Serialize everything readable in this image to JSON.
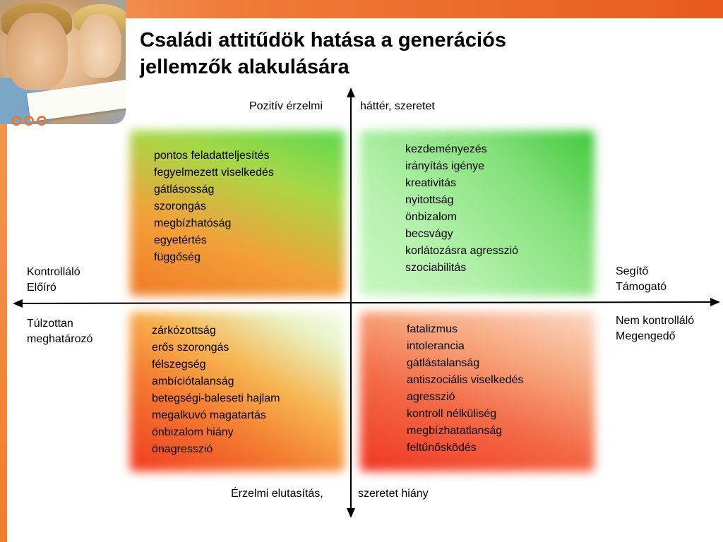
{
  "title": {
    "line1": "Családi attitűdök hatása a generációs",
    "line2": "jellemzők alakulására"
  },
  "axes": {
    "top_left": "Pozitív érzelmi",
    "top_right": "háttér, szeretet",
    "bottom_left": "Érzelmi elutasítás,",
    "bottom_right": "szeretet hiány",
    "left_upper": [
      "Kontrolláló",
      "Előíró"
    ],
    "left_lower": [
      "Túlzottan",
      "meghatározó"
    ],
    "right_upper": [
      "Segítő",
      "Támogató"
    ],
    "right_lower": [
      "Nem kontrolláló",
      "Megengedő"
    ]
  },
  "quadrants": {
    "top_left": [
      "pontos feladatteljesítés",
      "fegyelmezett viselkedés",
      "gátlásosság",
      "szorongás",
      "megbízhatóság",
      "egyetértés",
      "függőség"
    ],
    "top_right": [
      "kezdeményezés",
      "irányítás igénye",
      "kreativitás",
      "nyitottság",
      "önbizalom",
      "becsvágy",
      "korlátozásra agresszió",
      "szociabilitás"
    ],
    "bottom_left": [
      "zárkózottság",
      "erős szorongás",
      "félszegség",
      "ambíciótalanság",
      "betegségi-baleseti hajlam",
      "megalkuvó magatartás",
      "önbizalom hiány",
      "önagresszió"
    ],
    "bottom_right": [
      "fatalizmus",
      "intolerancia",
      "gátlástalanság",
      "antiszociális viselkedés",
      "agresszió",
      "kontroll nélküliség",
      "megbízhatatlanság",
      "feltűnősködés"
    ]
  },
  "colors": {
    "accent_orange": "#e9782f",
    "positive_green": "#3fc83a",
    "negative_red": "#f03622"
  }
}
